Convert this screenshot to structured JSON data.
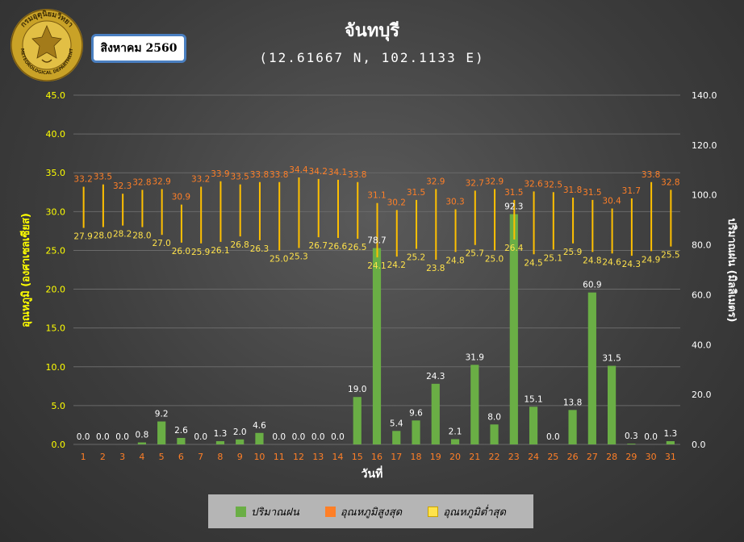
{
  "header": {
    "title": "จันทบุรี",
    "subtitle": "(12.61667 N, 102.1133 E)",
    "month": "สิงหาคม 2560",
    "logo_text_top": "กรมอุตุนิยมวิทยา",
    "logo_text_bottom": "METEOROLOGICAL DEPARTMENT"
  },
  "colors": {
    "rain": "#6aae45",
    "tmax_label": "#ff7f27",
    "tmin_label": "#ffe24a",
    "range_line": "#ffc000",
    "left_axis": "#ffff00",
    "right_axis": "#ffffff",
    "x_tick": "#ff7f27",
    "grid": "#6a6a6a"
  },
  "legend": {
    "rain": "ปริมาณฝน",
    "tmax": "อุณหภูมิสูงสุด",
    "tmin": "อุณหภูมิต่ำสุด"
  },
  "chart_data": {
    "type": "bar",
    "xlabel": "วันที่",
    "ylabel_left": "อุณหภูมิ (องศาเซลเซียส)",
    "ylabel_right": "ปริมาณฝน (มิลลิเมตร)",
    "ylim_left": [
      0,
      45
    ],
    "ylim_right": [
      0,
      140
    ],
    "yticks_left": [
      "0.0",
      "5.0",
      "10.0",
      "15.0",
      "20.0",
      "25.0",
      "30.0",
      "35.0",
      "40.0",
      "45.0"
    ],
    "yticks_right": [
      "0.0",
      "20.0",
      "40.0",
      "60.0",
      "80.0",
      "100.0",
      "120.0",
      "140.0"
    ],
    "grid": true,
    "legend_position": "bottom",
    "categories": [
      "1",
      "2",
      "3",
      "4",
      "5",
      "6",
      "7",
      "8",
      "9",
      "10",
      "11",
      "12",
      "13",
      "14",
      "15",
      "16",
      "17",
      "18",
      "19",
      "20",
      "21",
      "22",
      "23",
      "24",
      "25",
      "26",
      "27",
      "28",
      "29",
      "30",
      "31"
    ],
    "series": [
      {
        "name": "ปริมาณฝน",
        "axis": "right",
        "values": [
          0.0,
          0.0,
          0.0,
          0.8,
          9.2,
          2.6,
          0.0,
          1.3,
          2.0,
          4.6,
          0.0,
          0.0,
          0.0,
          0.0,
          19.0,
          78.7,
          5.4,
          9.6,
          24.3,
          2.1,
          31.9,
          8.0,
          92.3,
          15.1,
          0.0,
          13.8,
          60.9,
          31.5,
          0.3,
          0.0,
          1.3
        ],
        "labels": [
          "0.0",
          "0.0",
          "0.0",
          "0.8",
          "9.2",
          "2.6",
          "0.0",
          "1.3",
          "2.0",
          "4.6",
          "0.0",
          "0.0",
          "0.0",
          "0.0",
          "19.0",
          "78.7",
          "5.4",
          "9.6",
          "24.3",
          "2.1",
          "31.9",
          "8.0",
          "92.3",
          "15.1",
          "0.0",
          "13.8",
          "60.9",
          "31.5",
          "0.3",
          "0.0",
          "1.3"
        ]
      },
      {
        "name": "อุณหภูมิสูงสุด",
        "axis": "left",
        "values": [
          33.2,
          33.5,
          32.3,
          32.8,
          32.9,
          30.9,
          33.2,
          33.9,
          33.5,
          33.8,
          33.8,
          34.4,
          34.2,
          34.1,
          33.8,
          31.1,
          30.2,
          31.5,
          32.9,
          30.3,
          32.7,
          32.9,
          31.5,
          32.6,
          32.5,
          31.8,
          31.5,
          30.4,
          31.7,
          33.8,
          32.8
        ],
        "labels": [
          "33.2",
          "33.5",
          "32.3",
          "32.8",
          "32.9",
          "30.9",
          "33.2",
          "33.9",
          "33.5",
          "33.8",
          "33.8",
          "34.4",
          "34.2",
          "34.1",
          "33.8",
          "31.1",
          "30.2",
          "31.5",
          "32.9",
          "30.3",
          "32.7",
          "32.9",
          "31.5",
          "32.6",
          "32.5",
          "31.8",
          "31.5",
          "30.4",
          "31.7",
          "33.8",
          "32.8"
        ]
      },
      {
        "name": "อุณหภูมิต่ำสุด",
        "axis": "left",
        "values": [
          27.9,
          28.0,
          28.2,
          28.0,
          27.0,
          26.0,
          25.9,
          26.1,
          26.8,
          26.3,
          25.0,
          25.3,
          26.7,
          26.6,
          26.5,
          24.1,
          24.2,
          25.2,
          23.8,
          24.8,
          25.7,
          25.0,
          26.4,
          24.5,
          25.1,
          25.9,
          24.8,
          24.6,
          24.3,
          24.9,
          25.5
        ],
        "labels": [
          "27.9",
          "28.0",
          "28.2",
          "28.0",
          "27.0",
          "26.0",
          "25.9",
          "26.1",
          "26.8",
          "26.3",
          "25.0",
          "25.3",
          "26.7",
          "26.6",
          "26.5",
          "24.1",
          "24.2",
          "25.2",
          "23.8",
          "24.8",
          "25.7",
          "25.0",
          "26.4",
          "24.5",
          "25.1",
          "25.9",
          "24.8",
          "24.6",
          "24.3",
          "24.9",
          "25.5"
        ]
      }
    ]
  }
}
